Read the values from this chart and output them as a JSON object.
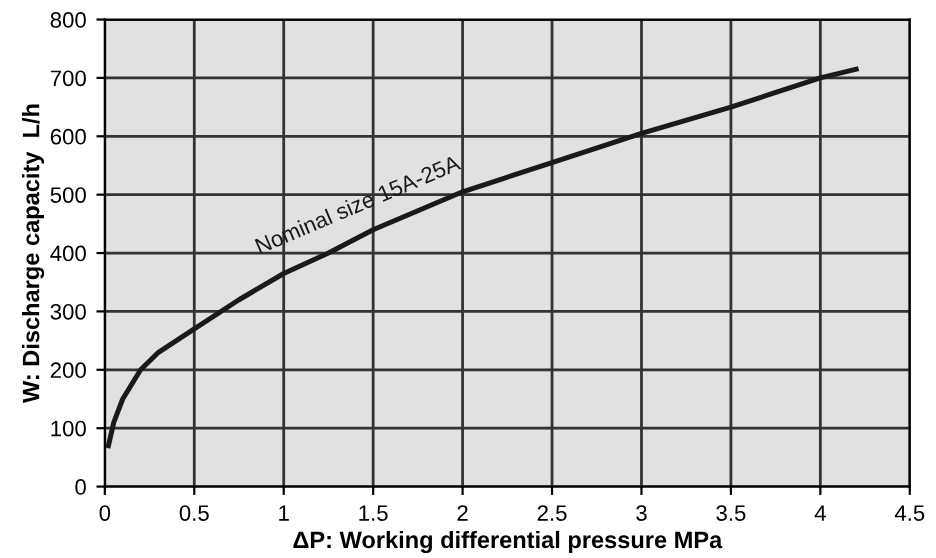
{
  "chart_data": {
    "type": "line",
    "xlabel": "ΔP: Working differential pressure MPa",
    "ylabel": "W: Discharge capacity  L/h",
    "series": [
      {
        "name": "Nominal size 15A-25A",
        "color": "#1a1a1a",
        "x": [
          0.02,
          0.05,
          0.1,
          0.2,
          0.3,
          0.5,
          0.75,
          1,
          1.25,
          1.5,
          2,
          2.5,
          3,
          3.5,
          4,
          4.2
        ],
        "values": [
          70,
          110,
          150,
          200,
          230,
          270,
          320,
          365,
          400,
          440,
          505,
          555,
          605,
          650,
          700,
          715
        ]
      }
    ],
    "xlim": [
      0,
      4.5
    ],
    "xticks": [
      0,
      0.5,
      1,
      1.5,
      2,
      2.5,
      3,
      3.5,
      4,
      4.5
    ],
    "ylim": [
      0,
      800
    ],
    "yticks": [
      0,
      100,
      200,
      300,
      400,
      500,
      600,
      700,
      800
    ],
    "grid": true,
    "marker": "none",
    "line_style": "solid"
  }
}
